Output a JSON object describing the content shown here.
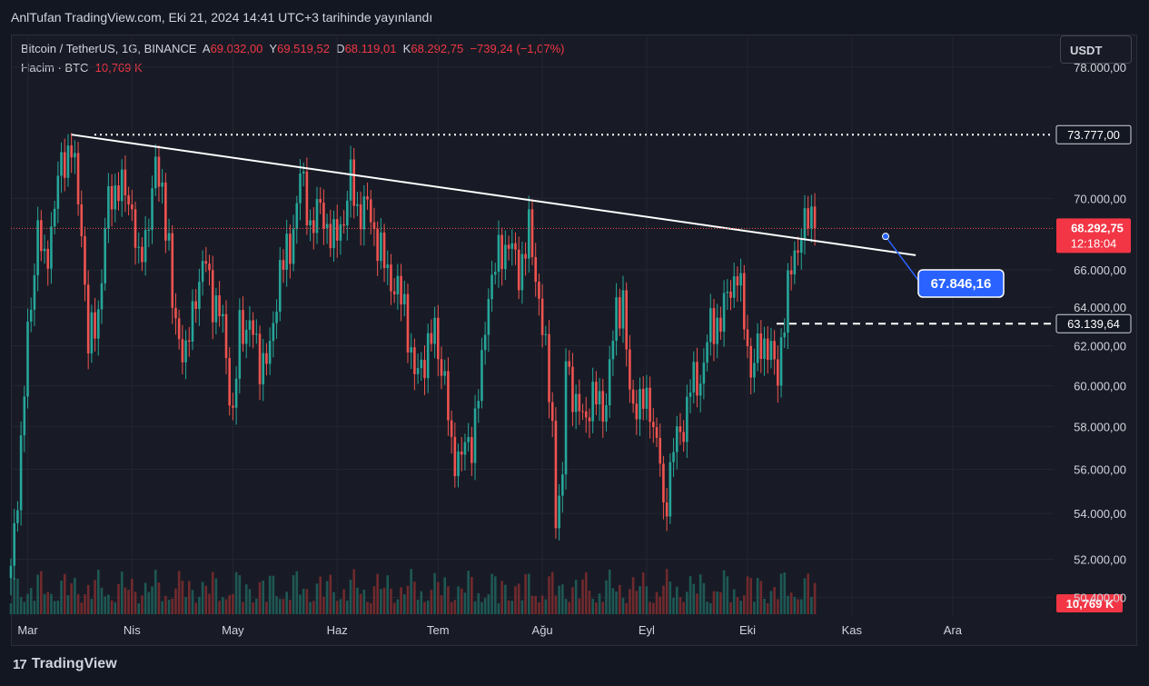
{
  "header": {
    "published": "AnlTufan TradingView.com, Eki 21, 2024 14:41 UTC+3 tarihinde yayınlandı"
  },
  "legend": {
    "symbol": "Bitcoin / TetherUS, 1G, BINANCE",
    "open_label": "A",
    "open": "69.032,00",
    "high_label": "Y",
    "high": "69.519,52",
    "low_label": "D",
    "low": "68.119,01",
    "close_label": "K",
    "close": "68.292,75",
    "change": "−739,24 (−1,07%)",
    "volume_label": "Hacim · BTC",
    "volume_value": "10,769 K"
  },
  "currency_button": "USDT",
  "branding": {
    "name": "TradingView",
    "logo": "17"
  },
  "colors": {
    "up": "#26a69a",
    "down": "#ef5350",
    "background": "#181b25",
    "accent_blue": "#2962ff"
  },
  "chart_data": {
    "type": "candlestick",
    "symbol": "BTC/USDT",
    "timeframe": "1G",
    "x_tick_labels": [
      "Mar",
      "Nis",
      "May",
      "Haz",
      "Tem",
      "Ağu",
      "Eyl",
      "Eki",
      "Kas",
      "Ara"
    ],
    "y_tick_labels": [
      "78.000,00",
      "70.000,00",
      "66.000,00",
      "64.000,00",
      "62.000,00",
      "60.000,00",
      "58.000,00",
      "56.000,00",
      "54.000,00",
      "52.000,00",
      "50.400,00"
    ],
    "y_ticks": [
      78000,
      70000,
      66000,
      64000,
      62000,
      60000,
      58000,
      56000,
      54000,
      52000,
      50400
    ],
    "ylim": [
      49700,
      80000
    ],
    "scale": "log",
    "x_range_days": [
      "2024-02-25",
      "2024-12-31"
    ],
    "current_price": {
      "value": 68292.75,
      "label": "68.292,75",
      "countdown": "12:18:04"
    },
    "volume_label": "10,769 K",
    "annotations": [
      {
        "type": "horizontal_dotted",
        "value": 73777,
        "label": "73.777,00"
      },
      {
        "type": "horizontal_dashed",
        "value": 63139.64,
        "label": "63.139,64"
      },
      {
        "type": "trendline",
        "from": {
          "date": "2024-03-14",
          "value": 73777
        },
        "to": {
          "date": "2024-11-20",
          "value": 66800
        }
      },
      {
        "type": "callout",
        "value": 67846.16,
        "label": "67.846,16"
      }
    ],
    "close_path": [
      [
        "2024-02-25",
        51500
      ],
      [
        "2024-02-28",
        57000
      ],
      [
        "2024-03-01",
        62400
      ],
      [
        "2024-03-04",
        68300
      ],
      [
        "2024-03-06",
        66100
      ],
      [
        "2024-03-08",
        68300
      ],
      [
        "2024-03-11",
        72100
      ],
      [
        "2024-03-14",
        73000
      ],
      [
        "2024-03-17",
        68400
      ],
      [
        "2024-03-19",
        61900
      ],
      [
        "2024-03-22",
        63800
      ],
      [
        "2024-03-25",
        69900
      ],
      [
        "2024-03-28",
        70800
      ],
      [
        "2024-04-01",
        69600
      ],
      [
        "2024-04-03",
        66000
      ],
      [
        "2024-04-05",
        67900
      ],
      [
        "2024-04-08",
        71600
      ],
      [
        "2024-04-10",
        70600
      ],
      [
        "2024-04-12",
        67100
      ],
      [
        "2024-04-13",
        63900
      ],
      [
        "2024-04-17",
        61300
      ],
      [
        "2024-04-20",
        64900
      ],
      [
        "2024-04-23",
        66400
      ],
      [
        "2024-04-25",
        64500
      ],
      [
        "2024-04-28",
        63100
      ],
      [
        "2024-05-01",
        58300
      ],
      [
        "2024-05-03",
        62900
      ],
      [
        "2024-05-06",
        63100
      ],
      [
        "2024-05-09",
        61200
      ],
      [
        "2024-05-12",
        61500
      ],
      [
        "2024-05-15",
        66200
      ],
      [
        "2024-05-18",
        67000
      ],
      [
        "2024-05-21",
        71400
      ],
      [
        "2024-05-24",
        68500
      ],
      [
        "2024-05-27",
        69400
      ],
      [
        "2024-05-31",
        67500
      ],
      [
        "2024-06-03",
        69000
      ],
      [
        "2024-06-05",
        71100
      ],
      [
        "2024-06-07",
        69300
      ],
      [
        "2024-06-10",
        69500
      ],
      [
        "2024-06-12",
        68200
      ],
      [
        "2024-06-15",
        66300
      ],
      [
        "2024-06-18",
        65100
      ],
      [
        "2024-06-21",
        64100
      ],
      [
        "2024-06-24",
        60300
      ],
      [
        "2024-06-27",
        61500
      ],
      [
        "2024-06-30",
        62700
      ],
      [
        "2024-07-03",
        60200
      ],
      [
        "2024-07-05",
        56700
      ],
      [
        "2024-07-08",
        56700
      ],
      [
        "2024-07-11",
        57300
      ],
      [
        "2024-07-14",
        60800
      ],
      [
        "2024-07-16",
        65000
      ],
      [
        "2024-07-19",
        66700
      ],
      [
        "2024-07-22",
        67600
      ],
      [
        "2024-07-25",
        65800
      ],
      [
        "2024-07-28",
        68200
      ],
      [
        "2024-07-29",
        66800
      ],
      [
        "2024-07-31",
        64600
      ],
      [
        "2024-08-02",
        61400
      ],
      [
        "2024-08-04",
        58100
      ],
      [
        "2024-08-05",
        54000
      ],
      [
        "2024-08-07",
        55100
      ],
      [
        "2024-08-08",
        61700
      ],
      [
        "2024-08-11",
        58700
      ],
      [
        "2024-08-14",
        58700
      ],
      [
        "2024-08-17",
        59400
      ],
      [
        "2024-08-20",
        59000
      ],
      [
        "2024-08-23",
        64100
      ],
      [
        "2024-08-25",
        64200
      ],
      [
        "2024-08-27",
        59400
      ],
      [
        "2024-08-30",
        59100
      ],
      [
        "2024-09-02",
        59100
      ],
      [
        "2024-09-05",
        56200
      ],
      [
        "2024-09-06",
        53900
      ],
      [
        "2024-09-09",
        57000
      ],
      [
        "2024-09-12",
        58100
      ],
      [
        "2024-09-14",
        60000
      ],
      [
        "2024-09-17",
        60300
      ],
      [
        "2024-09-20",
        63000
      ],
      [
        "2024-09-23",
        63300
      ],
      [
        "2024-09-26",
        65200
      ],
      [
        "2024-09-28",
        65800
      ],
      [
        "2024-09-30",
        63300
      ],
      [
        "2024-10-02",
        60800
      ],
      [
        "2024-10-05",
        62000
      ],
      [
        "2024-10-07",
        62200
      ],
      [
        "2024-10-10",
        60300
      ],
      [
        "2024-10-11",
        62400
      ],
      [
        "2024-10-14",
        66000
      ],
      [
        "2024-10-16",
        67600
      ],
      [
        "2024-10-18",
        68400
      ],
      [
        "2024-10-20",
        69000
      ],
      [
        "2024-10-21",
        68300
      ]
    ]
  }
}
